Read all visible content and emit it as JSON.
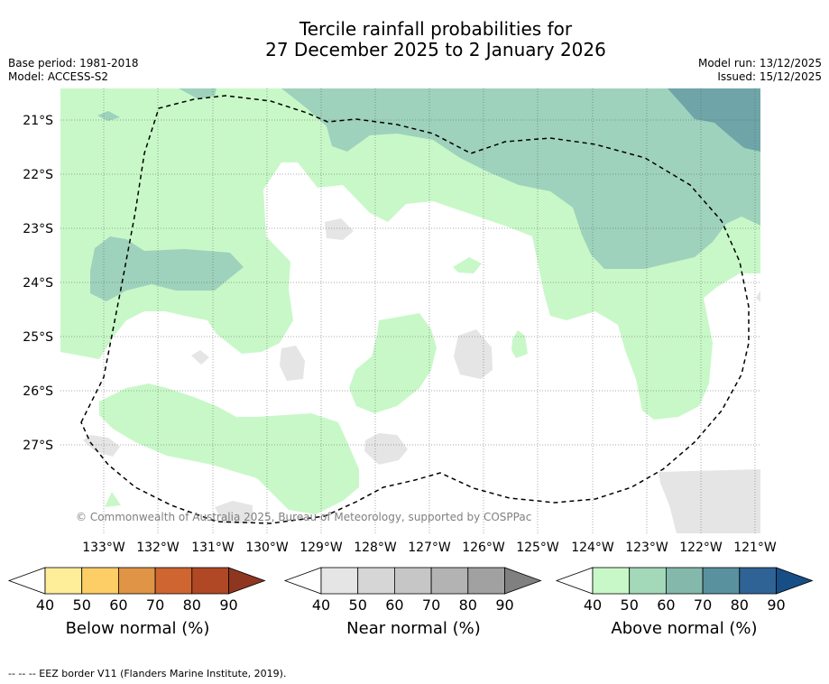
{
  "title": {
    "line1": "Tercile rainfall probabilities for",
    "line2": "27 December 2025 to 2 January 2026"
  },
  "meta_left": {
    "base_period": "Base period: 1981-2018",
    "model": "Model: ACCESS-S2"
  },
  "meta_right": {
    "model_run": "Model run: 13/12/2025",
    "issued": "Issued: 15/12/2025"
  },
  "map": {
    "latitude_labels": [
      "21°S",
      "22°S",
      "23°S",
      "24°S",
      "25°S",
      "26°S",
      "27°S"
    ],
    "longitude_labels": [
      "133°W",
      "132°W",
      "131°W",
      "130°W",
      "129°W",
      "128°W",
      "127°W",
      "126°W",
      "125°W",
      "124°W",
      "123°W",
      "122°W",
      "121°W"
    ],
    "copyright": "© Commonwealth of Australia 2025, Bureau of Meteorology, supported by COSPPac",
    "colors": {
      "above_40": "#c8f8c8",
      "above_50": "#9ed2bc",
      "above_60": "#6fa5a8",
      "near_40": "#e5e5e5",
      "border": "#000000"
    }
  },
  "colorbars": [
    {
      "name": "Below normal (%)",
      "ticks": [
        "40",
        "50",
        "60",
        "70",
        "80",
        "90"
      ],
      "colors": [
        "#ffee99",
        "#fdce65",
        "#e09445",
        "#cf6632",
        "#b04825",
        "#8f3620"
      ]
    },
    {
      "name": "Near normal (%)",
      "ticks": [
        "40",
        "50",
        "60",
        "70",
        "80",
        "90"
      ],
      "colors": [
        "#e5e5e5",
        "#d6d6d6",
        "#c6c6c6",
        "#b3b3b3",
        "#a1a1a1",
        "#808080"
      ]
    },
    {
      "name": "Above normal (%)",
      "ticks": [
        "40",
        "50",
        "60",
        "70",
        "80",
        "90"
      ],
      "colors": [
        "#c8f8c8",
        "#a3d8b8",
        "#84b8ab",
        "#59919f",
        "#2f6396",
        "#174e86"
      ]
    }
  ],
  "footer": "--  --  -- EEZ border V11 (Flanders Marine Institute, 2019)."
}
